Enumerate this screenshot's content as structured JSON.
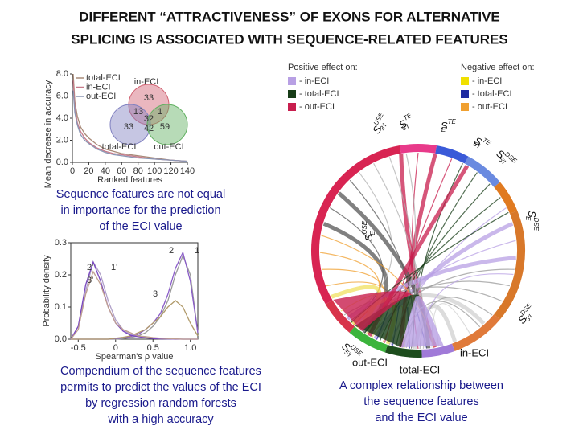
{
  "title": [
    "DIFFERENT “ATTRACTIVENESS” OF EXONS FOR ALTERNATIVE",
    "SPLICING IS ASSOCIATED WITH SEQUENCE-RELATED FEATURES"
  ],
  "chart_data": [
    {
      "type": "line",
      "x_label": "Ranked features",
      "y_label": "Mean decrease in accuracy",
      "xlim": [
        0,
        140
      ],
      "xticks": [
        0,
        20,
        40,
        60,
        80,
        100,
        120,
        140
      ],
      "ylim": [
        0,
        8
      ],
      "yticks": [
        {
          "value": 0,
          "label": "0.0"
        },
        {
          "value": 2,
          "label": "2.0"
        },
        {
          "value": 4,
          "label": "4.0"
        },
        {
          "value": 6,
          "label": "6.0"
        },
        {
          "value": 8,
          "label": "8.0"
        }
      ],
      "legend": "top-left",
      "x": [
        1,
        3,
        6,
        10,
        15,
        20,
        30,
        40,
        50,
        60,
        80,
        100,
        120,
        140
      ],
      "series": [
        {
          "name": "total-ECI",
          "color": "#a88a78",
          "values": [
            8.0,
            5.5,
            4.2,
            3.2,
            2.6,
            2.2,
            1.6,
            1.2,
            1.0,
            0.8,
            0.6,
            0.4,
            0.2,
            0.1
          ]
        },
        {
          "name": "in-ECI",
          "color": "#c77a8a",
          "values": [
            7.4,
            5.0,
            3.6,
            2.8,
            2.2,
            1.8,
            1.3,
            1.0,
            0.8,
            0.7,
            0.5,
            0.3,
            0.2,
            0.1
          ]
        },
        {
          "name": "out-ECI",
          "color": "#8a96b4",
          "values": [
            6.5,
            4.5,
            3.4,
            2.5,
            2.0,
            1.7,
            1.2,
            0.9,
            0.7,
            0.6,
            0.4,
            0.3,
            0.2,
            0.1
          ]
        }
      ]
    },
    {
      "type": "line",
      "x_label": "Spearman's ρ value",
      "y_label": "Probability density",
      "xlim": [
        -0.6,
        1.1
      ],
      "xticks": [
        -0.5,
        0,
        0.5,
        {
          "value": 1,
          "label": "1.0"
        }
      ],
      "ylim": [
        0,
        0.3
      ],
      "yticks": [
        {
          "value": 0,
          "label": "0.0"
        },
        0.1,
        0.2,
        0.3
      ],
      "x": [
        -0.6,
        -0.5,
        -0.4,
        -0.3,
        -0.2,
        -0.1,
        0,
        0.1,
        0.2,
        0.3,
        0.4,
        0.5,
        0.6,
        0.7,
        0.8,
        0.9,
        1.0,
        1.1
      ],
      "series": [
        {
          "name": "1",
          "color": "#9a9a9a",
          "values": [
            0,
            0,
            0,
            0,
            0,
            0,
            0,
            0.002,
            0.005,
            0.01,
            0.02,
            0.04,
            0.07,
            0.12,
            0.2,
            0.26,
            0.2,
            0.02
          ]
        },
        {
          "name": "2",
          "color": "#8a5cc8",
          "values": [
            0,
            0,
            0,
            0,
            0,
            0,
            0.002,
            0.004,
            0.008,
            0.015,
            0.03,
            0.05,
            0.08,
            0.14,
            0.22,
            0.27,
            0.18,
            0.02
          ]
        },
        {
          "name": "3",
          "color": "#b09a6a",
          "values": [
            0,
            0,
            0,
            0,
            0,
            0,
            0.003,
            0.006,
            0.01,
            0.02,
            0.03,
            0.05,
            0.07,
            0.1,
            0.12,
            0.1,
            0.05,
            0.01
          ]
        },
        {
          "name": "1'",
          "color": "#b0a0c8",
          "values": [
            0,
            0.03,
            0.15,
            0.24,
            0.2,
            0.12,
            0.06,
            0.03,
            0.015,
            0.01,
            0.005,
            0.003,
            0.002,
            0.001,
            0.001,
            0,
            0,
            0
          ]
        },
        {
          "name": "2'",
          "color": "#7a48c0",
          "values": [
            0,
            0.04,
            0.17,
            0.24,
            0.18,
            0.1,
            0.05,
            0.025,
            0.012,
            0.008,
            0.004,
            0.002,
            0.001,
            0.001,
            0,
            0,
            0,
            0
          ]
        },
        {
          "name": "3'",
          "color": "#c0a090",
          "values": [
            0,
            0.03,
            0.14,
            0.21,
            0.17,
            0.1,
            0.05,
            0.03,
            0.02,
            0.01,
            0.008,
            0.005,
            0.003,
            0.002,
            0.001,
            0,
            0,
            0
          ]
        }
      ]
    }
  ],
  "venn": {
    "sets": [
      "in-ECI",
      "total-ECI",
      "out-ECI"
    ],
    "counts": [
      33,
      13,
      1,
      32,
      33,
      42,
      59
    ]
  },
  "chord": {
    "positive_title": "Positive effect on:",
    "negative_title": "Negative effect on:",
    "positive": [
      {
        "label": "- in-ECI",
        "color": "#b8a0e4"
      },
      {
        "label": "- total-ECI",
        "color": "#173c17"
      },
      {
        "label": "- out-ECI",
        "color": "#c81e4e"
      }
    ],
    "negative": [
      {
        "label": "- in-ECI",
        "color": "#f0e000"
      },
      {
        "label": "- total-ECI",
        "color": "#1e2aa0"
      },
      {
        "label": "- out-ECI",
        "color": "#f0a030"
      }
    ],
    "features": [
      {
        "base": "S",
        "sup": "USE",
        "sub": "3'I"
      },
      {
        "base": "S",
        "sup": "TE",
        "sub": "3'I"
      },
      {
        "base": "S",
        "sup": "TE",
        "sub": "E"
      },
      {
        "base": "S",
        "sup": "TE",
        "sub": "5'I"
      },
      {
        "base": "S",
        "sup": "DSE",
        "sub": "5'I"
      },
      {
        "base": "S",
        "sup": "DSE",
        "sub": "E"
      },
      {
        "base": "S",
        "sup": "USE",
        "sub": "E"
      },
      {
        "base": "S",
        "sup": "DSE",
        "sub": "3'I"
      },
      {
        "base": "S",
        "sup": "USE",
        "sub": "5'I"
      }
    ],
    "groups": [
      "out-ECI",
      "total-ECI",
      "in-ECI"
    ]
  },
  "captions": [
    [
      "Sequence features are not equal",
      "in importance for the prediction",
      "of the ECI value"
    ],
    [
      "Compendium of the sequence features",
      "permits to predict the values of the ECI",
      "by regression random forests",
      "with a high accuracy"
    ],
    [
      "A complex relationship between",
      "the sequence features",
      "and the ECI value"
    ]
  ]
}
